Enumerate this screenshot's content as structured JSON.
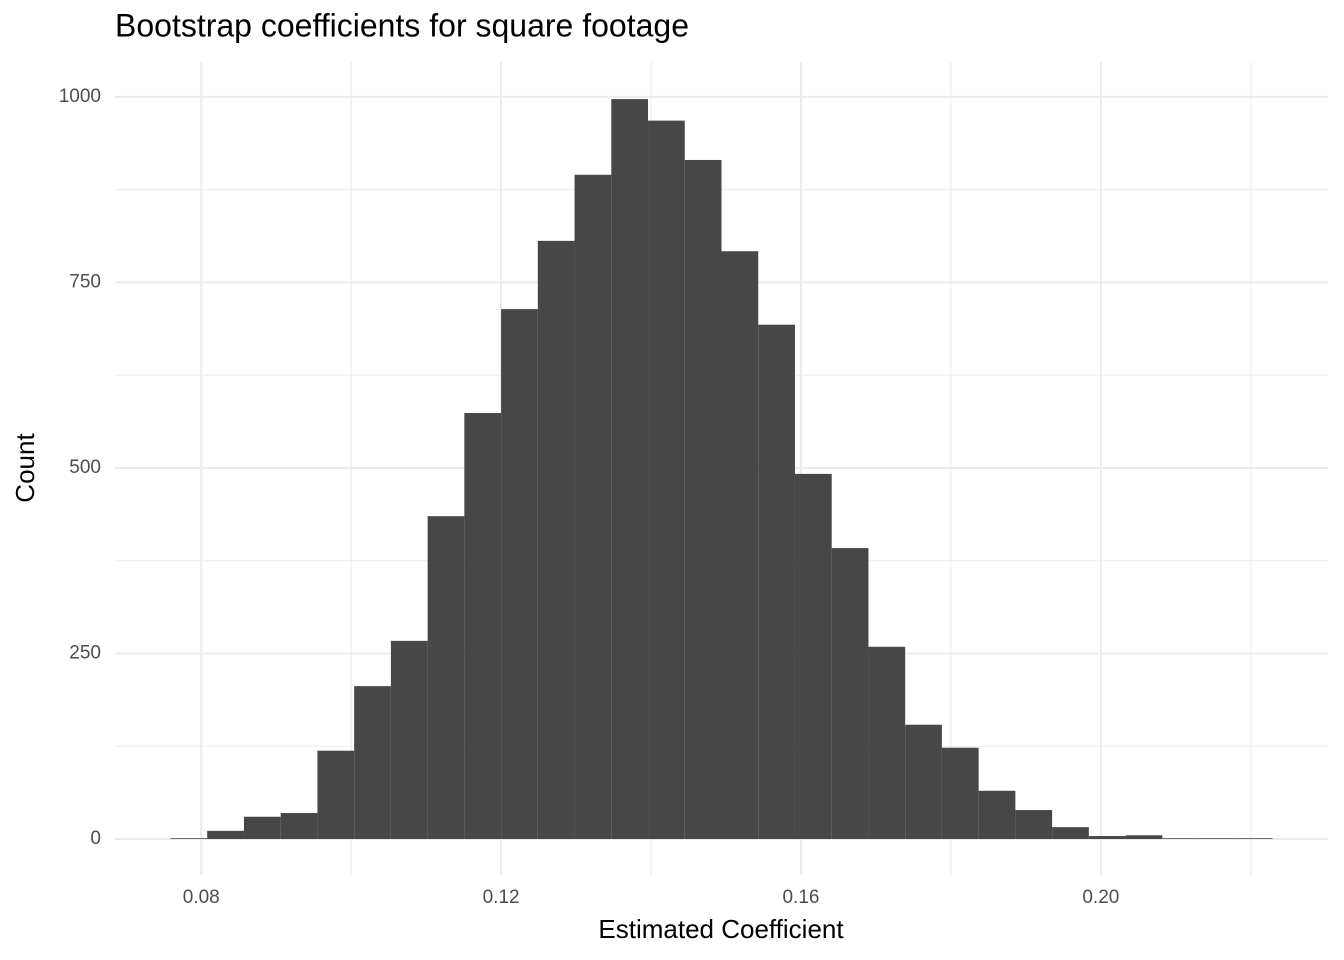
{
  "chart_data": {
    "type": "histogram",
    "title": "Bootstrap coefficients for square footage",
    "xlabel": "Estimated Coefficient",
    "ylabel": "Count",
    "bins": [
      0.0759,
      0.0808,
      0.0857,
      0.0906,
      0.0955,
      0.1004,
      0.1053,
      0.1102,
      0.1151,
      0.12,
      0.1249,
      0.1298,
      0.1347,
      0.1396,
      0.1445,
      0.1494,
      0.1543,
      0.1592,
      0.1641,
      0.169,
      0.1739,
      0.1788,
      0.1837,
      0.1886,
      0.1935,
      0.1984,
      0.2033,
      0.2082,
      0.2131,
      0.218,
      0.2229
    ],
    "counts": [
      1,
      11,
      30,
      35,
      119,
      206,
      267,
      435,
      574,
      714,
      806,
      895,
      997,
      968,
      915,
      792,
      693,
      492,
      392,
      259,
      154,
      123,
      65,
      39,
      16,
      4,
      5,
      1,
      1,
      1
    ],
    "color": "#474747",
    "xlim": [
      0.0685,
      0.2303
    ],
    "xticks": [
      {
        "value": 0.08,
        "label": "0.08"
      },
      0.12,
      0.16,
      {
        "value": 0.2,
        "label": "0.20"
      }
    ],
    "ylim": [
      -48.5,
      1047
    ],
    "yticks": [
      0,
      250,
      500,
      750,
      1000
    ],
    "grid": true
  }
}
